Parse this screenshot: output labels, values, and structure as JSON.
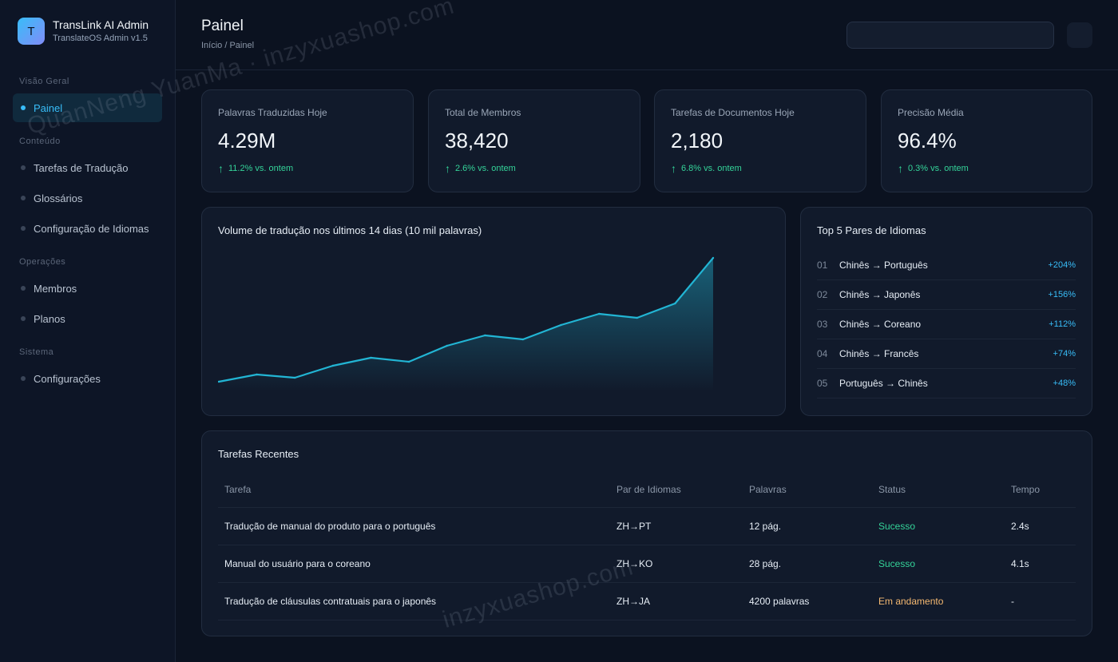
{
  "brand": {
    "logo_letter": "T",
    "title": "TransLink AI Admin",
    "subtitle": "TranslateOS Admin v1.5"
  },
  "sidebar": {
    "sections": [
      {
        "label": "Visão Geral",
        "items": [
          {
            "label": "Painel",
            "active": true
          }
        ]
      },
      {
        "label": "Conteúdo",
        "items": [
          {
            "label": "Tarefas de Tradução"
          },
          {
            "label": "Glossários"
          },
          {
            "label": "Configuração de Idiomas"
          }
        ]
      },
      {
        "label": "Operações",
        "items": [
          {
            "label": "Membros"
          },
          {
            "label": "Planos"
          }
        ]
      },
      {
        "label": "Sistema",
        "items": [
          {
            "label": "Configurações"
          }
        ]
      }
    ]
  },
  "header": {
    "title": "Painel",
    "breadcrumb": "Início / Painel",
    "search_placeholder": ""
  },
  "stats": [
    {
      "label": "Palavras Traduzidas Hoje",
      "value": "4.29M",
      "delta": "11.2% vs. ontem"
    },
    {
      "label": "Total de Membros",
      "value": "38,420",
      "delta": "2.6% vs. ontem"
    },
    {
      "label": "Tarefas de Documentos Hoje",
      "value": "2,180",
      "delta": "6.8% vs. ontem"
    },
    {
      "label": "Precisão Média",
      "value": "96.4%",
      "delta": "0.3% vs. ontem"
    }
  ],
  "chart": {
    "title": "Volume de tradução nos últimos 14 dias (10 mil palavras)"
  },
  "chart_data": {
    "type": "area",
    "title": "Volume de tradução nos últimos 14 dias (10 mil palavras)",
    "x": [
      1,
      2,
      3,
      4,
      5,
      6,
      7,
      8,
      9,
      10,
      11,
      12,
      13,
      14
    ],
    "series": [
      {
        "values": [
          12,
          21,
          17,
          32,
          42,
          37,
          57,
          70,
          65,
          83,
          97,
          92,
          110,
          167
        ]
      }
    ],
    "ylim": [
      0,
      170
    ],
    "grid": false,
    "color": "#22b5d4"
  },
  "top_pairs": {
    "title": "Top 5 Pares de Idiomas",
    "items": [
      {
        "rank": "01",
        "pair": "Chinês → Português",
        "change": "+204%"
      },
      {
        "rank": "02",
        "pair": "Chinês → Japonês",
        "change": "+156%"
      },
      {
        "rank": "03",
        "pair": "Chinês → Coreano",
        "change": "+112%"
      },
      {
        "rank": "04",
        "pair": "Chinês → Francês",
        "change": "+74%"
      },
      {
        "rank": "05",
        "pair": "Português → Chinês",
        "change": "+48%"
      }
    ]
  },
  "recent": {
    "title": "Tarefas Recentes",
    "columns": [
      "Tarefa",
      "Par de Idiomas",
      "Palavras",
      "Status",
      "Tempo"
    ],
    "rows": [
      {
        "task": "Tradução de manual do produto para o português",
        "pair": "ZH→PT",
        "words": "12 pág.",
        "status": "Sucesso",
        "status_type": "ok",
        "time": "2.4s"
      },
      {
        "task": "Manual do usuário para o coreano",
        "pair": "ZH→KO",
        "words": "28 pág.",
        "status": "Sucesso",
        "status_type": "ok",
        "time": "4.1s"
      },
      {
        "task": "Tradução de cláusulas contratuais para o japonês",
        "pair": "ZH→JA",
        "words": "4200 palavras",
        "status": "Em andamento",
        "status_type": "running",
        "time": "-"
      }
    ]
  },
  "watermark": {
    "text_1": "QuanNeng YuanMa · inzyxuashop.com",
    "text_2": "inzyxuashop.com"
  },
  "colors": {
    "accent": "#38bdf8",
    "success": "#34d399",
    "warning": "#f5b971",
    "background": "#0b1220"
  }
}
